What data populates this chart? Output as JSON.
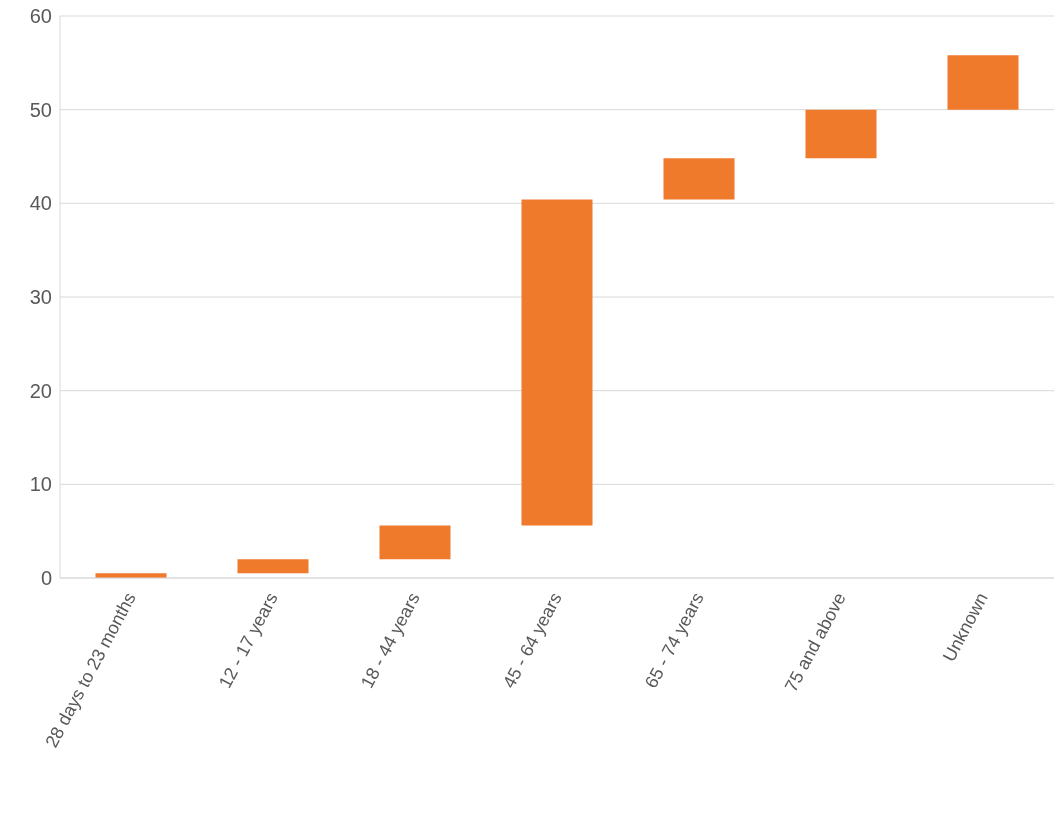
{
  "chart_data": {
    "type": "bar",
    "categories": [
      "28 days to 23 months",
      "12 - 17 years",
      "18 - 44 years",
      "45 - 64 years",
      "65 - 74 years",
      "75 and above",
      "Unknown"
    ],
    "base": [
      0,
      0.5,
      2,
      5.6,
      40.4,
      44.8,
      50
    ],
    "values": [
      0.5,
      1.5,
      3.6,
      34.8,
      4.4,
      5.2,
      5.8
    ],
    "color": "#ef7a2c",
    "ylim": [
      0,
      60
    ],
    "yticks": [
      0,
      10,
      20,
      30,
      40,
      50,
      60
    ],
    "grid": "y"
  }
}
